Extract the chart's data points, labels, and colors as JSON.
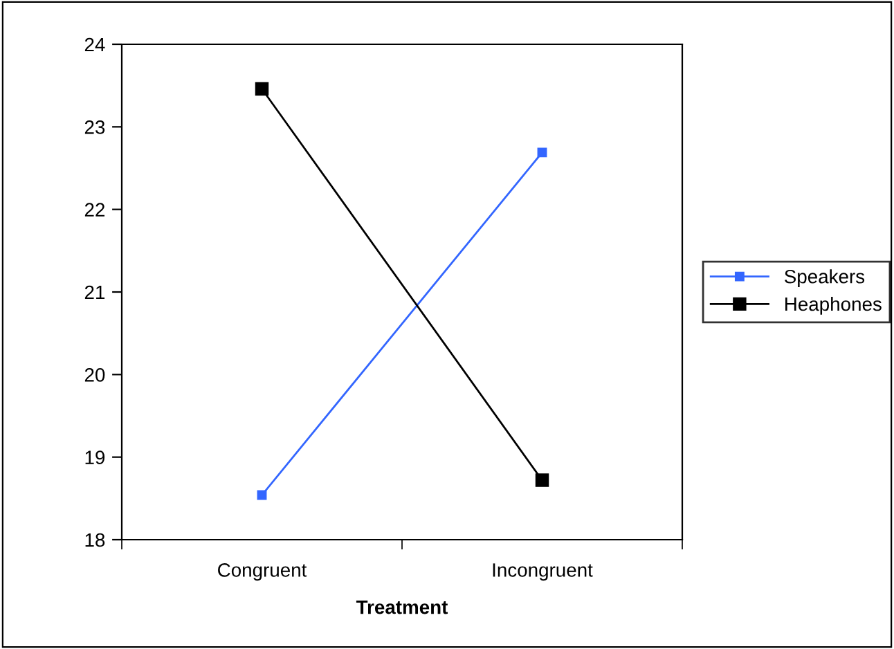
{
  "chart_data": {
    "type": "line",
    "xlabel": "Treatment",
    "categories": [
      "Congruent",
      "Incongruent"
    ],
    "series": [
      {
        "name": "Speakers",
        "color": "#3366ff",
        "values": [
          18.54,
          22.69
        ],
        "marker": "square"
      },
      {
        "name": "Heaphones",
        "color": "#000000",
        "values": [
          23.46,
          18.72
        ],
        "marker": "square"
      }
    ],
    "ylim": [
      18,
      24
    ],
    "yticks": [
      18,
      19,
      20,
      21,
      22,
      23,
      24
    ],
    "grid": false,
    "legend": "right",
    "line_style": "solid"
  }
}
